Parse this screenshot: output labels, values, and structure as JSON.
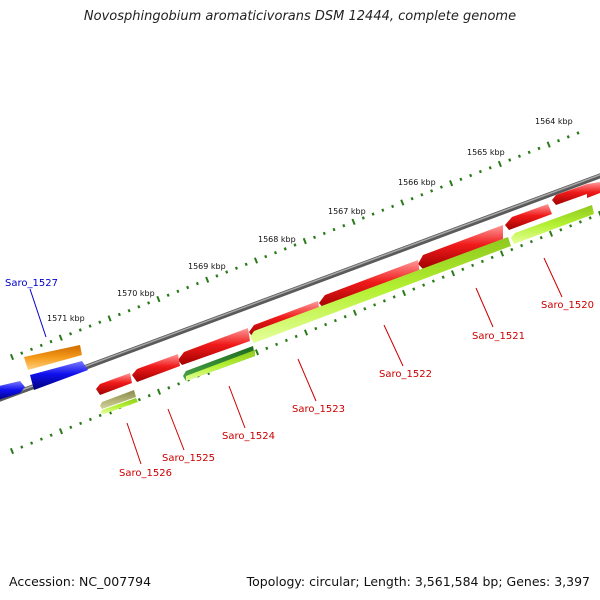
{
  "title": "Novosphingobium aromaticivorans DSM 12444, complete genome",
  "accession_text": "Accession: NC_007794",
  "summary_text": "Topology: circular; Length: 3,561,584 bp; Genes: 3,397",
  "colors": {
    "backbone": "#7a7a7a",
    "cds_reverse": "#e8141e",
    "cds_forward": "#1414e6",
    "feature_orange": "#f39a1c",
    "feature_lightgreen": "#b4f032",
    "feature_darkgreen": "#2d8c2d",
    "feature_olive": "#b4b464",
    "tick": "#2a7a1a",
    "label_reverse": "#cc0000",
    "label_forward": "#0000cc"
  },
  "kbp_ticks": [
    {
      "label": "1564 kbp"
    },
    {
      "label": "1565 kbp"
    },
    {
      "label": "1566 kbp"
    },
    {
      "label": "1567 kbp"
    },
    {
      "label": "1568 kbp"
    },
    {
      "label": "1569 kbp"
    },
    {
      "label": "1570 kbp"
    },
    {
      "label": "1571 kbp"
    }
  ],
  "gene_labels": [
    {
      "text": "Saro_1520",
      "strand": "reverse"
    },
    {
      "text": "Saro_1521",
      "strand": "reverse"
    },
    {
      "text": "Saro_1522",
      "strand": "reverse"
    },
    {
      "text": "Saro_1523",
      "strand": "reverse"
    },
    {
      "text": "Saro_1524",
      "strand": "reverse"
    },
    {
      "text": "Saro_1525",
      "strand": "reverse"
    },
    {
      "text": "Saro_1526",
      "strand": "reverse"
    },
    {
      "text": "Saro_1527",
      "strand": "forward"
    }
  ]
}
